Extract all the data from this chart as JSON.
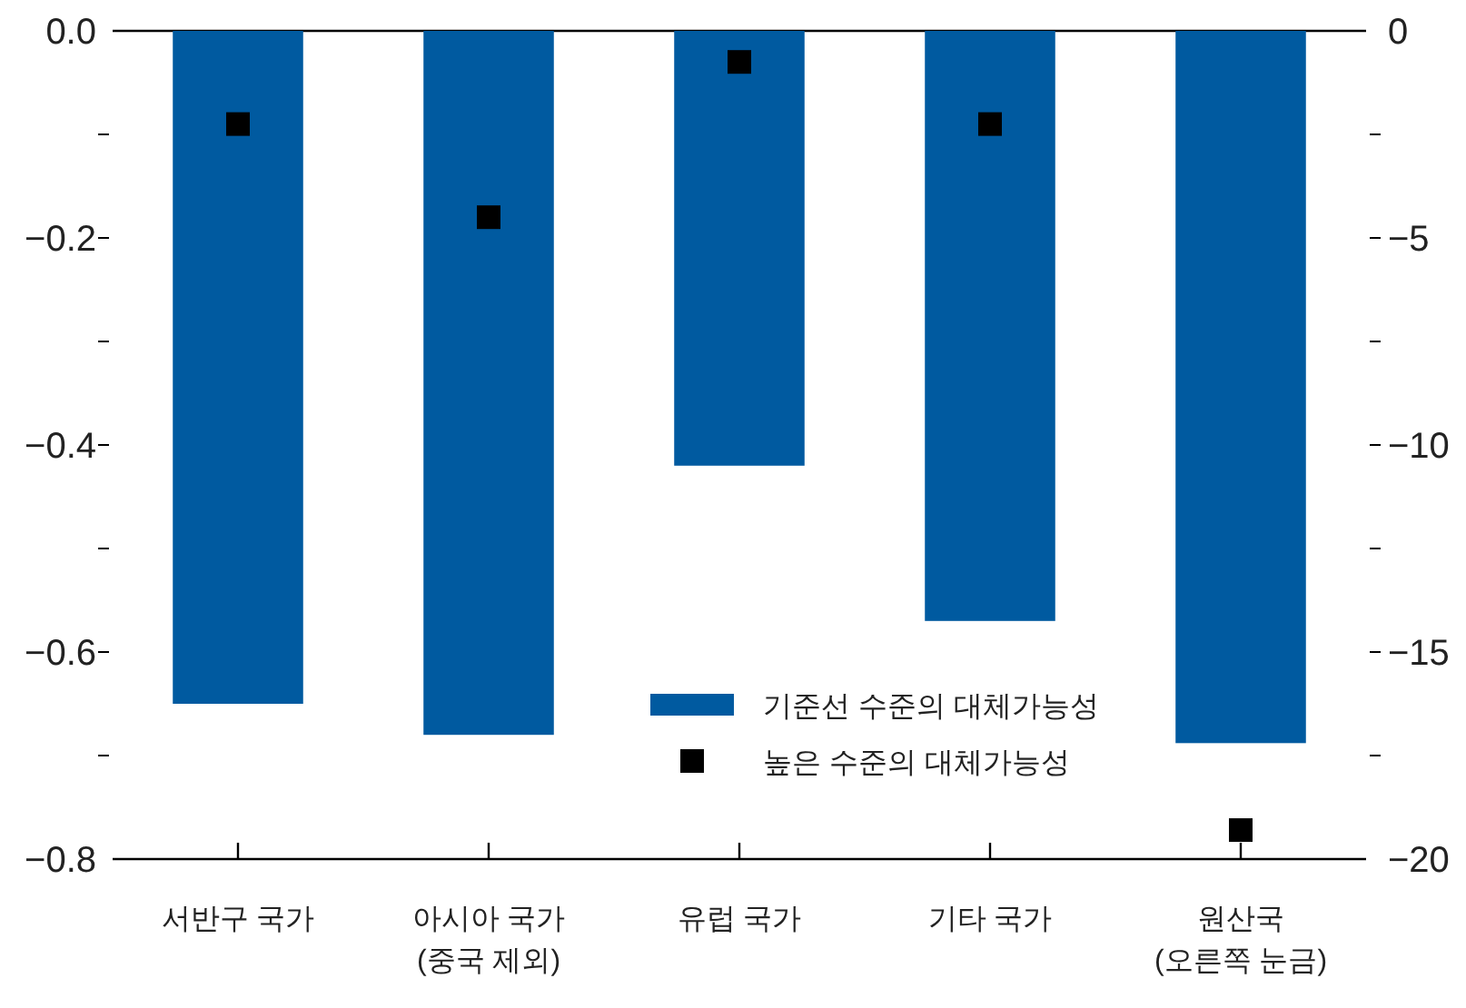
{
  "chart_data": {
    "type": "bar",
    "categories": [
      "서반구 국가",
      "아시아 국가\n(중국 제외)",
      "유럽 국가",
      "기타 국가",
      "원산국\n(오른쪽 눈금)"
    ],
    "ylim": [
      -0.8,
      0
    ],
    "yticks": [
      {
        "value": 0,
        "label": "0.0"
      },
      {
        "value": -0.1,
        "label": null
      },
      {
        "value": -0.2,
        "label": "−0.2"
      },
      {
        "value": -0.3,
        "label": null
      },
      {
        "value": -0.4,
        "label": "−0.4"
      },
      {
        "value": -0.5,
        "label": null
      },
      {
        "value": -0.6,
        "label": "−0.6"
      },
      {
        "value": -0.7,
        "label": null
      },
      {
        "value": -0.8,
        "label": "−0.8"
      }
    ],
    "y2lim": [
      -20,
      0
    ],
    "y2ticks": [
      0,
      {
        "value": -2.5,
        "label": null
      },
      {
        "value": -5,
        "label": "−5"
      },
      {
        "value": -7.5,
        "label": null
      },
      {
        "value": -10,
        "label": "−10"
      },
      {
        "value": -12.5,
        "label": null
      },
      {
        "value": -15,
        "label": "−15"
      },
      {
        "value": -17.5,
        "label": null
      },
      {
        "value": -20,
        "label": "−20"
      }
    ],
    "legend": "bottom right",
    "series": [
      {
        "name": "기준선 수준의 대체가능성",
        "color": "#005aa0",
        "values": [
          -0.65,
          -0.68,
          -0.42,
          -0.57,
          null
        ]
      },
      {
        "name": "높은 수준의 대체가능성",
        "type": "scatter",
        "marker": "square",
        "color": "#000000",
        "values": [
          -0.09,
          -0.18,
          -0.03,
          -0.09,
          null
        ]
      },
      {
        "axis": "y2",
        "color": "#005aa0",
        "values": [
          null,
          null,
          null,
          null,
          -17.2
        ]
      },
      {
        "type": "scatter",
        "axis": "y2",
        "marker": "square",
        "color": "#000000",
        "values": [
          null,
          null,
          null,
          null,
          -19.3
        ]
      }
    ]
  }
}
